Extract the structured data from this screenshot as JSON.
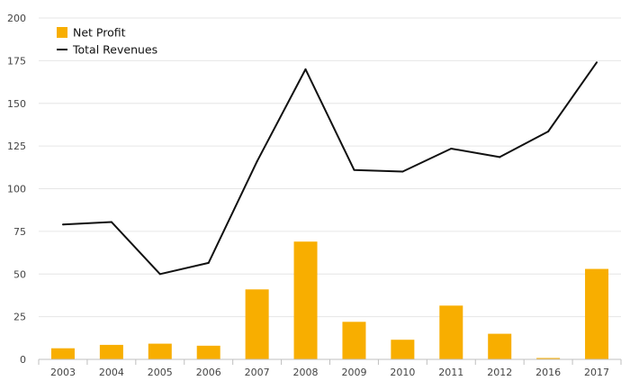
{
  "chart_data": {
    "type": "bar",
    "title": "",
    "xlabel": "",
    "ylabel": "",
    "categories": [
      "2003",
      "2004",
      "2005",
      "2006",
      "2007",
      "2008",
      "2009",
      "2010",
      "2011",
      "2012",
      "2016",
      "2017"
    ],
    "ylim": [
      0,
      200
    ],
    "yticks": [
      "0",
      "25",
      "50",
      "75",
      "100",
      "125",
      "150",
      "175",
      "200"
    ],
    "grid": true,
    "legend_position": "top-left",
    "series": [
      {
        "name": "Net Profit",
        "type": "bar",
        "color": "#F8AE00",
        "values": [
          6.5,
          8.5,
          9.2,
          8.0,
          41.0,
          69.0,
          22.0,
          11.5,
          31.5,
          15.0,
          0.8,
          53.0
        ]
      },
      {
        "name": "Total Revenues",
        "type": "line",
        "color": "#111111",
        "values": [
          79,
          80.5,
          50,
          56.5,
          116,
          170,
          111,
          110,
          123.5,
          118.5,
          133.5,
          174
        ]
      }
    ]
  }
}
